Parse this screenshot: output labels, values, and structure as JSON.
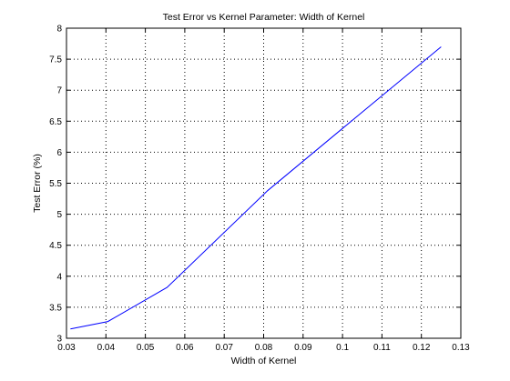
{
  "chart_data": {
    "type": "line",
    "title": "Test Error vs Kernel Parameter: Width of Kernel",
    "xlabel": "Width of Kernel",
    "ylabel": "Test Error (%)",
    "xlim": [
      0.03,
      0.13
    ],
    "ylim": [
      3,
      8
    ],
    "xticks": [
      0.03,
      0.04,
      0.05,
      0.06,
      0.07,
      0.08,
      0.09,
      0.1,
      0.11,
      0.12,
      0.13
    ],
    "xtick_labels": [
      "0.03",
      "0.04",
      "0.05",
      "0.06",
      "0.07",
      "0.08",
      "0.09",
      "0.1",
      "0.11",
      "0.12",
      "0.13"
    ],
    "yticks": [
      3,
      3.5,
      4,
      4.5,
      5,
      5.5,
      6,
      6.5,
      7,
      7.5,
      8
    ],
    "ytick_labels": [
      "3",
      "3.5",
      "4",
      "4.5",
      "5",
      "5.5",
      "6",
      "6.5",
      "7",
      "7.5",
      "8"
    ],
    "grid": true,
    "series": [
      {
        "color": "#0000ff",
        "x": [
          0.031,
          0.0405,
          0.0555,
          0.081,
          0.1005,
          0.125
        ],
        "y": [
          3.15,
          3.27,
          3.82,
          5.38,
          6.41,
          7.7
        ]
      }
    ]
  }
}
